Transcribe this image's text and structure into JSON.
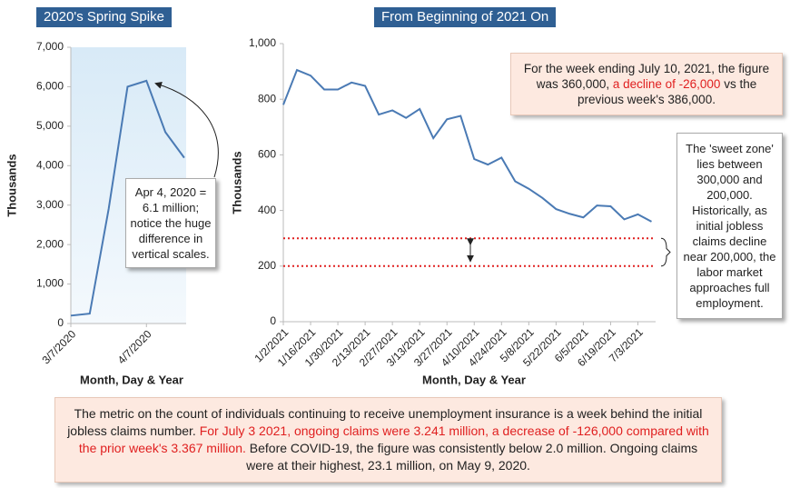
{
  "chart_data": [
    {
      "type": "line",
      "title": "2020's Spring Spike",
      "y_label": "Thousands",
      "x_label": "Month, Day & Year",
      "categories": [
        "3/7/2020",
        null,
        null,
        null,
        "4/7/2020",
        null,
        null
      ],
      "series": [
        {
          "color": "#4a7ab4",
          "values": [
            200,
            250,
            2900,
            6000,
            6150,
            4850,
            4200
          ]
        }
      ],
      "ylim": [
        0,
        7000
      ],
      "yticks": [
        0,
        {
          "value": 1000,
          "label": "1,000"
        },
        {
          "value": 2000,
          "label": "2,000"
        },
        {
          "value": 3000,
          "label": "3,000"
        },
        {
          "value": 4000,
          "label": "4,000"
        },
        {
          "value": 5000,
          "label": "5,000"
        },
        {
          "value": 6000,
          "label": "6,000"
        },
        {
          "value": 7000,
          "label": "7,000"
        }
      ],
      "annotation": "Apr 4, 2020 = 6.1 million; notice the huge difference in vertical scales."
    },
    {
      "type": "line",
      "title": "From Beginning of 2021 On",
      "y_label": "Thousands",
      "x_label": "Month, Day & Year",
      "categories": [
        "1/2/2021",
        null,
        "1/16/2021",
        null,
        "1/30/2021",
        null,
        "2/13/2021",
        null,
        "2/27/2021",
        null,
        "3/13/2021",
        null,
        "3/27/2021",
        null,
        "4/10/2021",
        null,
        "4/24/2021",
        null,
        "5/8/2021",
        null,
        "5/22/2021",
        null,
        "6/5/2021",
        null,
        "6/19/2021",
        null,
        "7/3/2021",
        null
      ],
      "series": [
        {
          "color": "#4a7ab4",
          "values": [
            780,
            905,
            885,
            835,
            835,
            860,
            848,
            745,
            760,
            733,
            765,
            660,
            728,
            740,
            585,
            565,
            590,
            505,
            478,
            445,
            405,
            388,
            375,
            418,
            415,
            368,
            386,
            360
          ]
        }
      ],
      "ylim": [
        0,
        1000
      ],
      "yticks": [
        0,
        200,
        400,
        600,
        800,
        {
          "value": 1000,
          "label": "1,000"
        }
      ],
      "reference_lines": {
        "color": "#e02020",
        "values": [
          300,
          200
        ]
      },
      "annotation": [
        "For the week ending July 10, 2021, the figure was 360,000, ",
        "a decline of -26,000",
        " vs the previous week's 386,000."
      ],
      "side_note": "The 'sweet zone' lies between 300,000 and 200,000. Historically, as initial jobless claims decline near 200,000, the labor market approaches full employment."
    }
  ],
  "footer_note": [
    "The metric on the count of individuals continuing to receive unemployment insurance is a week behind the initial jobless claims number. ",
    "For July 3 2021, ongoing claims were 3.241 million, a decrease of -126,000 compared with the prior week's 3.367 million.",
    " Before COVID-19, the figure was consistently below 2.0 million. Ongoing claims were at their highest, 23.1 million, on May 9, 2020."
  ]
}
